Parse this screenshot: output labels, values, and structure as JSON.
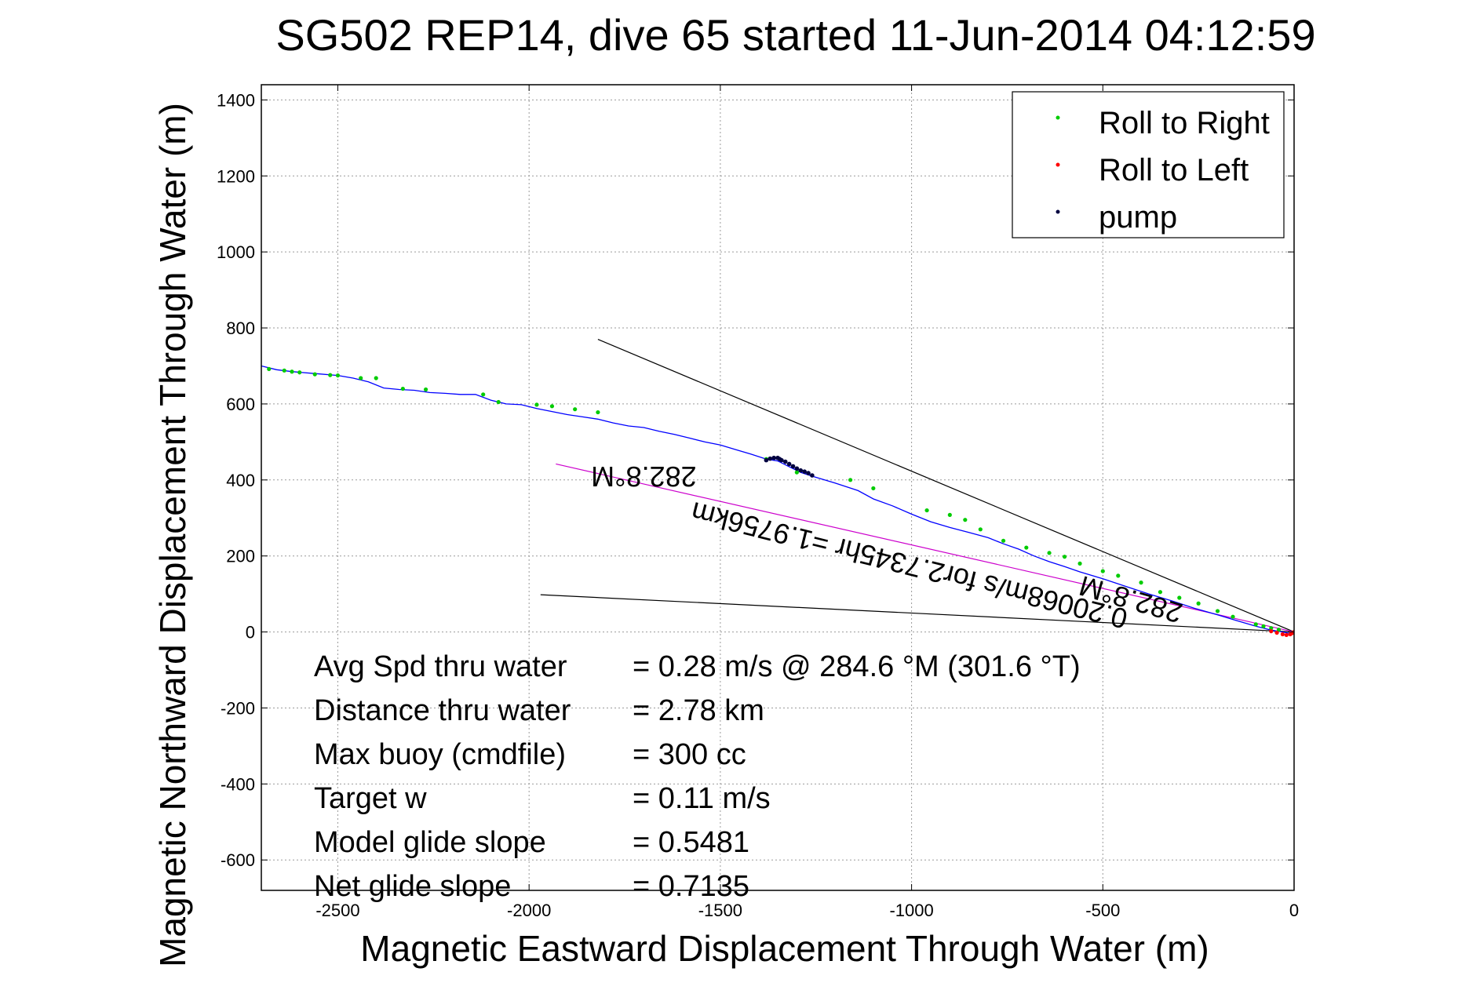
{
  "chart_data": {
    "type": "line",
    "title": "SG502 REP14, dive 65 started 11-Jun-2014 04:12:59",
    "xlabel": "Magnetic Eastward Displacement Through Water (m)",
    "ylabel": "Magnetic Northward Displacement Through Water (m)",
    "xlim": [
      -2700,
      0
    ],
    "ylim": [
      -680,
      1440
    ],
    "xticks": [
      -2500,
      -2000,
      -1500,
      -1000,
      -500,
      0
    ],
    "yticks": [
      1400,
      1200,
      1000,
      800,
      600,
      400,
      200,
      0,
      -200,
      -400,
      -600
    ],
    "grid": true,
    "legend_position": "top-right",
    "legend": [
      {
        "label": "Roll to Right",
        "color": "#00cc00"
      },
      {
        "label": "Roll to Left",
        "color": "#ff0000"
      },
      {
        "label": "pump",
        "color": "#000040"
      }
    ],
    "series": [
      {
        "name": "track",
        "color": "#0000ff",
        "x": [
          -2700,
          -2660,
          -2620,
          -2560,
          -2500,
          -2460,
          -2420,
          -2380,
          -2340,
          -2300,
          -2260,
          -2220,
          -2180,
          -2140,
          -2100,
          -2060,
          -2020,
          -1980,
          -1940,
          -1900,
          -1860,
          -1820,
          -1780,
          -1740,
          -1700,
          -1660,
          -1620,
          -1580,
          -1540,
          -1500,
          -1460,
          -1420,
          -1380,
          -1350,
          -1320,
          -1290,
          -1260,
          -1200,
          -1140,
          -1100,
          -1050,
          -1000,
          -950,
          -900,
          -850,
          -800,
          -760,
          -720,
          -680,
          -640,
          -600,
          -560,
          -500,
          -440,
          -380,
          -320,
          -260,
          -200,
          -150,
          -100,
          -60,
          -30,
          -10,
          0
        ],
        "y": [
          700,
          690,
          685,
          680,
          675,
          668,
          658,
          642,
          638,
          636,
          630,
          628,
          625,
          625,
          610,
          600,
          598,
          588,
          580,
          572,
          566,
          560,
          550,
          542,
          538,
          528,
          520,
          510,
          500,
          492,
          480,
          468,
          455,
          450,
          435,
          420,
          410,
          392,
          372,
          350,
          332,
          310,
          290,
          275,
          262,
          248,
          232,
          218,
          200,
          185,
          172,
          158,
          140,
          120,
          100,
          82,
          62,
          45,
          30,
          15,
          5,
          0,
          -4,
          0
        ]
      }
    ],
    "roll_right_points": {
      "x": [
        -2680,
        -2640,
        -2620,
        -2600,
        -2560,
        -2520,
        -2500,
        -2440,
        -2400,
        -2330,
        -2270,
        -2120,
        -2080,
        -1980,
        -1940,
        -1880,
        -1820,
        -1380,
        -1300,
        -1160,
        -1100,
        -960,
        -900,
        -860,
        -820,
        -760,
        -700,
        -640,
        -600,
        -560,
        -500,
        -460,
        -400,
        -350,
        -300,
        -250,
        -200,
        -160,
        -100,
        -80,
        -60,
        -40
      ],
      "y": [
        692,
        688,
        685,
        683,
        678,
        676,
        675,
        668,
        668,
        640,
        638,
        625,
        605,
        598,
        594,
        586,
        578,
        455,
        420,
        400,
        378,
        320,
        308,
        295,
        270,
        240,
        222,
        208,
        198,
        180,
        160,
        148,
        130,
        105,
        90,
        75,
        55,
        40,
        20,
        15,
        10,
        6
      ]
    },
    "roll_left_points": {
      "x": [
        -60,
        -45,
        -30,
        -20,
        -10,
        -5,
        0
      ],
      "y": [
        2,
        -2,
        -6,
        -8,
        -6,
        -3,
        0
      ]
    },
    "pump_points": {
      "x": [
        -1380,
        -1370,
        -1360,
        -1350,
        -1345,
        -1340,
        -1330,
        -1320,
        -1310,
        -1300,
        -1290,
        -1280,
        -1270,
        -1260
      ],
      "y": [
        452,
        456,
        458,
        458,
        455,
        452,
        448,
        442,
        436,
        430,
        425,
        422,
        418,
        412
      ]
    },
    "reference_lines": [
      {
        "color": "#000000",
        "x": [
          -1820,
          0
        ],
        "y": [
          770,
          0
        ]
      },
      {
        "color": "#000000",
        "x": [
          -1970,
          0
        ],
        "y": [
          98,
          0
        ]
      },
      {
        "color": "#cc00cc",
        "x": [
          -1930,
          0
        ],
        "y": [
          442,
          0
        ]
      }
    ],
    "annotations": [
      {
        "text": "282.8°M",
        "x": -1700,
        "y": 435,
        "rotation": 180
      },
      {
        "text": "282.8°M",
        "x": -420,
        "y": 110,
        "rotation": 196
      },
      {
        "text": "0.20068m/s for2.7345hr =1.9756km",
        "x": -1000,
        "y": 200,
        "rotation": 194
      }
    ],
    "stats": [
      {
        "label": "Avg Spd thru water",
        "value": "=  0.28 m/s @ 284.6 °M (301.6 °T)"
      },
      {
        "label": "Distance thru water",
        "value": "=  2.78 km"
      },
      {
        "label": "Max buoy (cmdfile)",
        "value": "= 300 cc"
      },
      {
        "label": "Target w",
        "value": "= 0.11 m/s"
      },
      {
        "label": "Model glide slope",
        "value": "= 0.5481"
      },
      {
        "label": "Net glide slope",
        "value": "= 0.7135"
      }
    ]
  }
}
